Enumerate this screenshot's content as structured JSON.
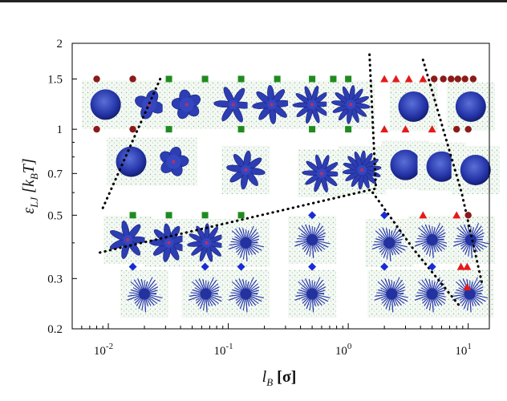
{
  "chart_data": {
    "type": "scatter",
    "title": "",
    "xlabel_main": "l",
    "xlabel_sub": "B",
    "xlabel_unit": " [σ]",
    "ylabel_main": "ε",
    "ylabel_sub": "LJ",
    "ylabel_unit_open": " [k",
    "ylabel_unit_sub": "B",
    "ylabel_unit_close": "T]",
    "x_scale": "log",
    "y_scale": "log",
    "xlim": [
      0.005,
      15
    ],
    "ylim": [
      0.2,
      2
    ],
    "x_ticks": [
      {
        "v": 0.01,
        "base": "10",
        "exp": "-2"
      },
      {
        "v": 0.1,
        "base": "10",
        "exp": "-1"
      },
      {
        "v": 1,
        "base": "10",
        "exp": "0"
      },
      {
        "v": 10,
        "base": "10",
        "exp": "1"
      }
    ],
    "y_ticks": [
      {
        "v": 0.2,
        "label": "0.2"
      },
      {
        "v": 0.3,
        "label": "0.3"
      },
      {
        "v": 0.5,
        "label": "0.5"
      },
      {
        "v": 0.7,
        "label": "0.7"
      },
      {
        "v": 1,
        "label": "1"
      },
      {
        "v": 1.5,
        "label": "1.5"
      },
      {
        "v": 2,
        "label": "2"
      }
    ],
    "grid": false,
    "legend": "none",
    "series": [
      {
        "marker": "circle",
        "color": "#8b1a1a",
        "points": [
          [
            0.008,
            1.5
          ],
          [
            0.016,
            1.5
          ],
          [
            0.008,
            1.0
          ],
          [
            0.016,
            1.0
          ],
          [
            5.2,
            1.5
          ],
          [
            6.2,
            1.5
          ],
          [
            7.2,
            1.5
          ],
          [
            8.2,
            1.5
          ],
          [
            9.4,
            1.5
          ],
          [
            11,
            1.5
          ],
          [
            8,
            1.0
          ],
          [
            10,
            1.0
          ],
          [
            10,
            0.5
          ]
        ]
      },
      {
        "marker": "square",
        "color": "#1f8b1f",
        "points": [
          [
            0.032,
            1.5
          ],
          [
            0.064,
            1.5
          ],
          [
            0.128,
            1.5
          ],
          [
            0.256,
            1.5
          ],
          [
            0.5,
            1.5
          ],
          [
            0.75,
            1.5
          ],
          [
            1.0,
            1.5
          ],
          [
            0.032,
            1.0
          ],
          [
            0.128,
            1.0
          ],
          [
            0.5,
            1.0
          ],
          [
            1.0,
            1.0
          ],
          [
            0.016,
            0.5
          ],
          [
            0.032,
            0.5
          ],
          [
            0.064,
            0.5
          ],
          [
            0.128,
            0.5
          ]
        ]
      },
      {
        "marker": "triangle",
        "color": "#e31a1a",
        "points": [
          [
            2.0,
            1.5
          ],
          [
            2.5,
            1.5
          ],
          [
            3.2,
            1.5
          ],
          [
            4.2,
            1.5
          ],
          [
            2.0,
            1.0
          ],
          [
            3.0,
            1.0
          ],
          [
            5.0,
            1.0
          ],
          [
            4.2,
            0.5
          ],
          [
            8,
            0.5
          ],
          [
            8.7,
            0.33
          ],
          [
            9.8,
            0.33
          ],
          [
            9.8,
            0.28
          ]
        ]
      },
      {
        "marker": "diamond",
        "color": "#1a2bd6",
        "points": [
          [
            0.5,
            0.5
          ],
          [
            2.0,
            0.5
          ],
          [
            0.016,
            0.33
          ],
          [
            0.064,
            0.33
          ],
          [
            0.128,
            0.33
          ],
          [
            0.5,
            0.33
          ],
          [
            2.0,
            0.33
          ],
          [
            5.0,
            0.33
          ]
        ]
      }
    ],
    "boundaries": [
      {
        "points": [
          [
            0.009,
            0.53
          ],
          [
            0.028,
            1.55
          ]
        ]
      },
      {
        "points": [
          [
            0.0085,
            0.37
          ],
          [
            1.7,
            0.62
          ],
          [
            1.5,
            1.85
          ]
        ]
      },
      {
        "points": [
          [
            1.6,
            0.6
          ],
          [
            3.5,
            0.38
          ],
          [
            8.5,
            0.24
          ]
        ]
      },
      {
        "points": [
          [
            4.2,
            1.75
          ],
          [
            8.8,
            0.6
          ],
          [
            13,
            0.29
          ]
        ]
      }
    ],
    "snapshots": [
      {
        "x": 0.0095,
        "y": 1.22,
        "form": "globule",
        "rays": 0
      },
      {
        "x": 0.022,
        "y": 1.22,
        "form": "flower",
        "rays": 4
      },
      {
        "x": 0.045,
        "y": 1.22,
        "form": "flower",
        "rays": 5
      },
      {
        "x": 0.11,
        "y": 1.22,
        "form": "flower",
        "rays": 6
      },
      {
        "x": 0.23,
        "y": 1.22,
        "form": "flower",
        "rays": 8
      },
      {
        "x": 0.5,
        "y": 1.22,
        "form": "flower",
        "rays": 10
      },
      {
        "x": 1.05,
        "y": 1.22,
        "form": "flower",
        "rays": 12
      },
      {
        "x": 3.5,
        "y": 1.2,
        "form": "globule",
        "rays": 0
      },
      {
        "x": 10.5,
        "y": 1.2,
        "form": "globule",
        "rays": 0
      },
      {
        "x": 0.0155,
        "y": 0.77,
        "form": "globule",
        "rays": 0
      },
      {
        "x": 0.035,
        "y": 0.77,
        "form": "flower",
        "rays": 5
      },
      {
        "x": 0.14,
        "y": 0.72,
        "form": "flower",
        "rays": 8
      },
      {
        "x": 0.6,
        "y": 0.7,
        "form": "flower",
        "rays": 10
      },
      {
        "x": 1.3,
        "y": 0.72,
        "form": "flower",
        "rays": 14
      },
      {
        "x": 3.0,
        "y": 0.75,
        "form": "globule",
        "rays": 0
      },
      {
        "x": 6.0,
        "y": 0.74,
        "form": "globule",
        "rays": 0
      },
      {
        "x": 11.5,
        "y": 0.72,
        "form": "globule",
        "rays": 0
      },
      {
        "x": 0.0145,
        "y": 0.41,
        "form": "flower",
        "rays": 7
      },
      {
        "x": 0.032,
        "y": 0.4,
        "form": "flower",
        "rays": 9
      },
      {
        "x": 0.066,
        "y": 0.4,
        "form": "flower",
        "rays": 11
      },
      {
        "x": 0.14,
        "y": 0.4,
        "form": "brush",
        "rays": 0
      },
      {
        "x": 0.5,
        "y": 0.41,
        "form": "brush",
        "rays": 0
      },
      {
        "x": 2.2,
        "y": 0.4,
        "form": "brush",
        "rays": 0
      },
      {
        "x": 5.0,
        "y": 0.41,
        "form": "brush",
        "rays": 0
      },
      {
        "x": 10.5,
        "y": 0.41,
        "form": "brush",
        "rays": 0
      },
      {
        "x": 0.02,
        "y": 0.265,
        "form": "brush",
        "rays": 0
      },
      {
        "x": 0.065,
        "y": 0.265,
        "form": "brush",
        "rays": 0
      },
      {
        "x": 0.14,
        "y": 0.265,
        "form": "brush",
        "rays": 0
      },
      {
        "x": 0.5,
        "y": 0.265,
        "form": "brush",
        "rays": 0
      },
      {
        "x": 2.3,
        "y": 0.265,
        "form": "brush",
        "rays": 0
      },
      {
        "x": 5.0,
        "y": 0.265,
        "form": "brush",
        "rays": 0
      },
      {
        "x": 10.3,
        "y": 0.265,
        "form": "brush",
        "rays": 0
      }
    ]
  }
}
